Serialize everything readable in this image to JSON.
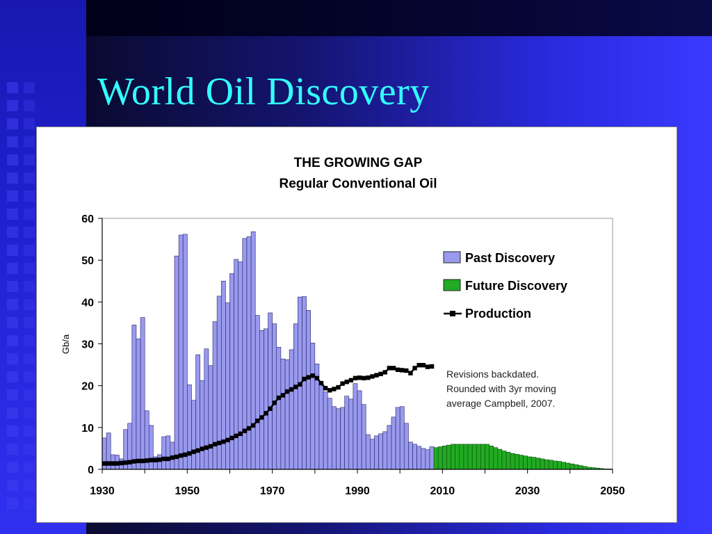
{
  "slide": {
    "title": "World Oil Discovery"
  },
  "chart_data": {
    "type": "bar",
    "title": "THE GROWING GAP",
    "subtitle": "Regular Conventional Oil",
    "ylabel": "Gb/a",
    "xlabel": "",
    "ylim": [
      0,
      60
    ],
    "xlim": [
      1930,
      2050
    ],
    "y_ticks": [
      0,
      10,
      20,
      30,
      40,
      50,
      60
    ],
    "x_ticks": [
      1930,
      1950,
      1970,
      1990,
      2010,
      2030,
      2050
    ],
    "grid": false,
    "legend_position": "right",
    "series": [
      {
        "name": "Past Discovery",
        "type": "bar",
        "color": "#9999ee",
        "x": [
          1930,
          1931,
          1932,
          1933,
          1934,
          1935,
          1936,
          1937,
          1938,
          1939,
          1940,
          1941,
          1942,
          1943,
          1944,
          1945,
          1946,
          1947,
          1948,
          1949,
          1950,
          1951,
          1952,
          1953,
          1954,
          1955,
          1956,
          1957,
          1958,
          1959,
          1960,
          1961,
          1962,
          1963,
          1964,
          1965,
          1966,
          1967,
          1968,
          1969,
          1970,
          1971,
          1972,
          1973,
          1974,
          1975,
          1976,
          1977,
          1978,
          1979,
          1980,
          1981,
          1982,
          1983,
          1984,
          1985,
          1986,
          1987,
          1988,
          1989,
          1990,
          1991,
          1992,
          1993,
          1994,
          1995,
          1996,
          1997,
          1998,
          1999,
          2000,
          2001,
          2002,
          2003,
          2004,
          2005,
          2006,
          2007
        ],
        "values": [
          7.5,
          8.7,
          3.5,
          3.4,
          2.5,
          9.5,
          11,
          34.5,
          31.2,
          36.3,
          14,
          10.5,
          3,
          3.5,
          7.8,
          8,
          6.5,
          51,
          56,
          56.2,
          20.2,
          16.5,
          27.4,
          21.2,
          28.8,
          24.8,
          35.3,
          41.4,
          45,
          39.8,
          46.8,
          50.2,
          49.6,
          55.2,
          55.6,
          56.8,
          36.8,
          33.2,
          33.6,
          37.4,
          34.8,
          29.2,
          26.4,
          26.2,
          28.6,
          34.8,
          41.2,
          41.3,
          38,
          30.2,
          25.2,
          20.5,
          18.5,
          17,
          15,
          14.5,
          14.8,
          17.5,
          16.8,
          20.5,
          18.8,
          15.5,
          8.3,
          7.2,
          8,
          8.5,
          9,
          10.5,
          12.5,
          14.8,
          15,
          11,
          6.5,
          6,
          5.5,
          5,
          4.7,
          5.4
        ]
      },
      {
        "name": "Future Discovery",
        "type": "bar",
        "color": "#22aa22",
        "x": [
          2008,
          2009,
          2010,
          2011,
          2012,
          2013,
          2014,
          2015,
          2016,
          2017,
          2018,
          2019,
          2020,
          2021,
          2022,
          2023,
          2024,
          2025,
          2026,
          2027,
          2028,
          2029,
          2030,
          2031,
          2032,
          2033,
          2034,
          2035,
          2036,
          2037,
          2038,
          2039,
          2040,
          2041,
          2042,
          2043,
          2044,
          2045,
          2046,
          2047,
          2048,
          2049,
          2050
        ],
        "values": [
          5.2,
          5.4,
          5.6,
          5.8,
          6,
          6,
          6,
          6,
          6,
          6,
          6,
          6,
          6,
          5.6,
          5.2,
          4.8,
          4.4,
          4.1,
          3.8,
          3.6,
          3.4,
          3.2,
          3,
          2.9,
          2.7,
          2.5,
          2.3,
          2.2,
          2,
          1.9,
          1.7,
          1.5,
          1.3,
          1.1,
          0.9,
          0.7,
          0.5,
          0.4,
          0.3,
          0.2,
          0.1,
          0.1,
          0
        ]
      },
      {
        "name": "Production",
        "type": "line",
        "color": "#000000",
        "x": [
          1930,
          1931,
          1932,
          1933,
          1934,
          1935,
          1936,
          1937,
          1938,
          1939,
          1940,
          1941,
          1942,
          1943,
          1944,
          1945,
          1946,
          1947,
          1948,
          1949,
          1950,
          1951,
          1952,
          1953,
          1954,
          1955,
          1956,
          1957,
          1958,
          1959,
          1960,
          1961,
          1962,
          1963,
          1964,
          1965,
          1966,
          1967,
          1968,
          1969,
          1970,
          1971,
          1972,
          1973,
          1974,
          1975,
          1976,
          1977,
          1978,
          1979,
          1980,
          1981,
          1982,
          1983,
          1984,
          1985,
          1986,
          1987,
          1988,
          1989,
          1990,
          1991,
          1992,
          1993,
          1994,
          1995,
          1996,
          1997,
          1998,
          1999,
          2000,
          2001,
          2002,
          2003,
          2004,
          2005,
          2006,
          2007
        ],
        "values": [
          1.4,
          1.4,
          1.4,
          1.4,
          1.5,
          1.6,
          1.7,
          1.9,
          2,
          2,
          2.1,
          2.2,
          2.2,
          2.3,
          2.5,
          2.5,
          2.8,
          3,
          3.3,
          3.5,
          3.8,
          4.2,
          4.5,
          4.9,
          5.2,
          5.5,
          6,
          6.3,
          6.6,
          7,
          7.5,
          8,
          8.5,
          9.2,
          9.8,
          10.5,
          11.6,
          12.4,
          13.4,
          14.5,
          15.9,
          17.1,
          17.7,
          18.6,
          19.1,
          19.7,
          20.3,
          21.6,
          22,
          22.4,
          21.8,
          20.6,
          19.4,
          18.9,
          19.2,
          19.6,
          20.5,
          20.9,
          21.3,
          21.8,
          21.9,
          21.8,
          21.9,
          22.2,
          22.5,
          22.8,
          23.2,
          24.2,
          24.2,
          23.8,
          23.7,
          23.6,
          23,
          24.2,
          24.9,
          24.9,
          24.5,
          24.6
        ]
      }
    ],
    "annotation": {
      "lines": [
        "Revisions backdated.",
        "Rounded with 3yr moving",
        "average   Campbell, 2007."
      ]
    }
  }
}
